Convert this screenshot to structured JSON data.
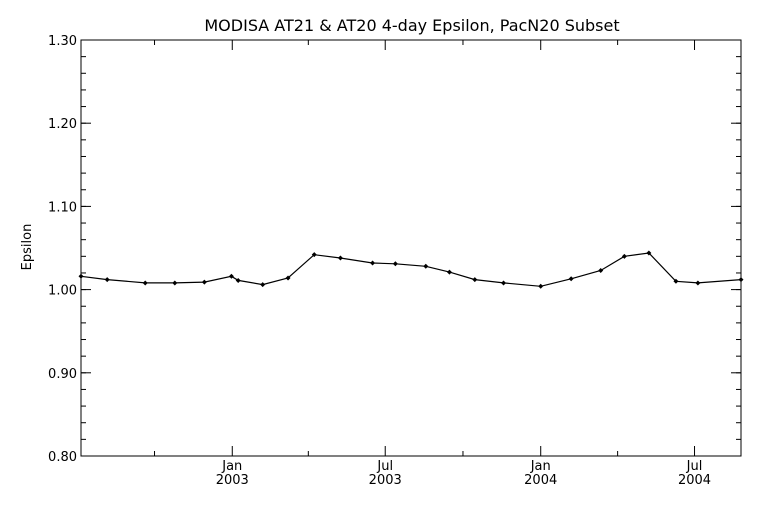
{
  "chart_data": {
    "type": "line",
    "title": "MODISA AT21 & AT20 4-day Epsilon, PacN20 Subset",
    "xlabel": "",
    "ylabel": "Epsilon",
    "ylim": [
      0.8,
      1.3
    ],
    "y_ticks": [
      "0.80",
      "0.90",
      "1.00",
      "1.10",
      "1.20",
      "1.30"
    ],
    "xlim": [
      "2002-07-06",
      "2004-08-25"
    ],
    "x_tick_labels": [
      {
        "date": "2003-01-01",
        "month": "Jan",
        "year": "2003"
      },
      {
        "date": "2003-07-01",
        "month": "Jul",
        "year": "2003"
      },
      {
        "date": "2004-01-01",
        "month": "Jan",
        "year": "2004"
      },
      {
        "date": "2004-07-01",
        "month": "Jul",
        "year": "2004"
      }
    ],
    "grid": false,
    "series": [
      {
        "color": "#000000",
        "x": [
          "2002-07-06",
          "2002-08-06",
          "2002-09-20",
          "2002-10-25",
          "2002-11-29",
          "2002-12-31",
          "2003-01-08",
          "2003-02-06",
          "2003-03-08",
          "2003-04-08",
          "2003-05-09",
          "2003-06-16",
          "2003-07-13",
          "2003-08-18",
          "2003-09-15",
          "2003-10-15",
          "2003-11-18",
          "2004-01-01",
          "2004-02-06",
          "2004-03-12",
          "2004-04-09",
          "2004-05-08",
          "2004-06-09",
          "2004-07-05",
          "2004-08-25"
        ],
        "values": [
          1.016,
          1.012,
          1.008,
          1.008,
          1.009,
          1.016,
          1.011,
          1.006,
          1.014,
          1.042,
          1.038,
          1.032,
          1.031,
          1.028,
          1.021,
          1.012,
          1.008,
          1.004,
          1.013,
          1.023,
          1.04,
          1.044,
          1.01,
          1.008,
          1.012
        ]
      }
    ]
  }
}
